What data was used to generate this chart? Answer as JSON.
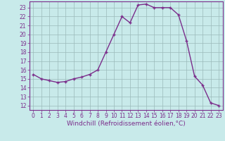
{
  "x": [
    0,
    1,
    2,
    3,
    4,
    5,
    6,
    7,
    8,
    9,
    10,
    11,
    12,
    13,
    14,
    15,
    16,
    17,
    18,
    19,
    20,
    21,
    22,
    23
  ],
  "y": [
    15.5,
    15.0,
    14.8,
    14.6,
    14.7,
    15.0,
    15.2,
    15.5,
    16.0,
    18.0,
    20.0,
    22.0,
    21.3,
    23.3,
    23.4,
    23.0,
    23.0,
    23.0,
    22.2,
    19.3,
    15.3,
    14.3,
    12.3,
    12.0
  ],
  "line_color": "#7b2d8b",
  "marker": "+",
  "markersize": 3.5,
  "linewidth": 1.0,
  "markeredgewidth": 1.0,
  "bg_color": "#c8eaea",
  "grid_color": "#9bbaba",
  "xlabel": "Windchill (Refroidissement éolien,°C)",
  "xlim": [
    -0.5,
    23.5
  ],
  "ylim": [
    11.5,
    23.7
  ],
  "yticks": [
    12,
    13,
    14,
    15,
    16,
    17,
    18,
    19,
    20,
    21,
    22,
    23
  ],
  "xticks": [
    0,
    1,
    2,
    3,
    4,
    5,
    6,
    7,
    8,
    9,
    10,
    11,
    12,
    13,
    14,
    15,
    16,
    17,
    18,
    19,
    20,
    21,
    22,
    23
  ],
  "tick_fontsize": 5.5,
  "xlabel_fontsize": 6.5,
  "tick_color": "#7b2d8b",
  "label_color": "#7b2d8b",
  "spine_color": "#7b2d8b"
}
